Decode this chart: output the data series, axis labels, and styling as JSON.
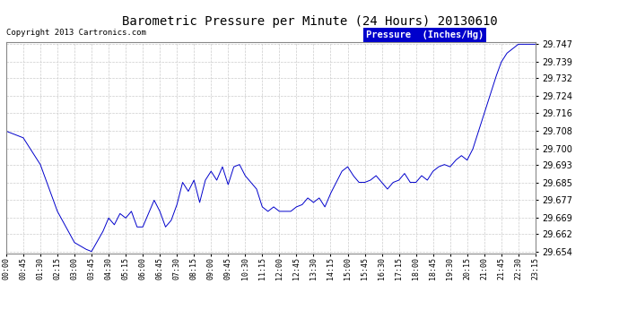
{
  "title": "Barometric Pressure per Minute (24 Hours) 20130610",
  "copyright": "Copyright 2013 Cartronics.com",
  "legend_label": "Pressure  (Inches/Hg)",
  "line_color": "#0000CC",
  "background_color": "#ffffff",
  "grid_color": "#cccccc",
  "ylim": [
    29.654,
    29.747
  ],
  "yticks": [
    29.654,
    29.662,
    29.669,
    29.677,
    29.685,
    29.693,
    29.7,
    29.708,
    29.716,
    29.724,
    29.732,
    29.739,
    29.747
  ],
  "xtick_labels": [
    "00:00",
    "00:45",
    "01:30",
    "02:15",
    "03:00",
    "03:45",
    "04:30",
    "05:15",
    "06:00",
    "06:45",
    "07:30",
    "08:15",
    "09:00",
    "09:45",
    "10:30",
    "11:15",
    "12:00",
    "12:45",
    "13:30",
    "14:15",
    "15:00",
    "15:45",
    "16:30",
    "17:15",
    "18:00",
    "18:45",
    "19:30",
    "20:15",
    "21:00",
    "21:45",
    "22:30",
    "23:15"
  ],
  "key_points": {
    "0": 29.708,
    "45": 29.705,
    "90": 29.693,
    "135": 29.672,
    "180": 29.658,
    "210": 29.655,
    "225": 29.654,
    "255": 29.663,
    "270": 29.669,
    "285": 29.666,
    "300": 29.671,
    "315": 29.669,
    "330": 29.672,
    "345": 29.665,
    "360": 29.665,
    "375": 29.671,
    "390": 29.677,
    "405": 29.672,
    "420": 29.665,
    "435": 29.668,
    "450": 29.675,
    "465": 29.685,
    "480": 29.681,
    "495": 29.686,
    "510": 29.676,
    "525": 29.686,
    "540": 29.69,
    "555": 29.686,
    "570": 29.692,
    "585": 29.684,
    "600": 29.692,
    "615": 29.693,
    "630": 29.688,
    "645": 29.685,
    "660": 29.682,
    "675": 29.674,
    "690": 29.672,
    "705": 29.674,
    "720": 29.672,
    "735": 29.672,
    "750": 29.672,
    "765": 29.674,
    "780": 29.675,
    "795": 29.678,
    "810": 29.676,
    "825": 29.678,
    "840": 29.674,
    "855": 29.68,
    "870": 29.685,
    "885": 29.69,
    "900": 29.692,
    "915": 29.688,
    "930": 29.685,
    "945": 29.685,
    "960": 29.686,
    "975": 29.688,
    "990": 29.685,
    "1005": 29.682,
    "1020": 29.685,
    "1035": 29.686,
    "1050": 29.689,
    "1065": 29.685,
    "1080": 29.685,
    "1095": 29.688,
    "1110": 29.686,
    "1125": 29.69,
    "1140": 29.692,
    "1155": 29.693,
    "1170": 29.692,
    "1185": 29.695,
    "1200": 29.697,
    "1215": 29.695,
    "1230": 29.7,
    "1245": 29.708,
    "1260": 29.716,
    "1275": 29.724,
    "1290": 29.732,
    "1305": 29.739,
    "1320": 29.743,
    "1335": 29.745,
    "1350": 29.747,
    "1395": 29.747
  }
}
